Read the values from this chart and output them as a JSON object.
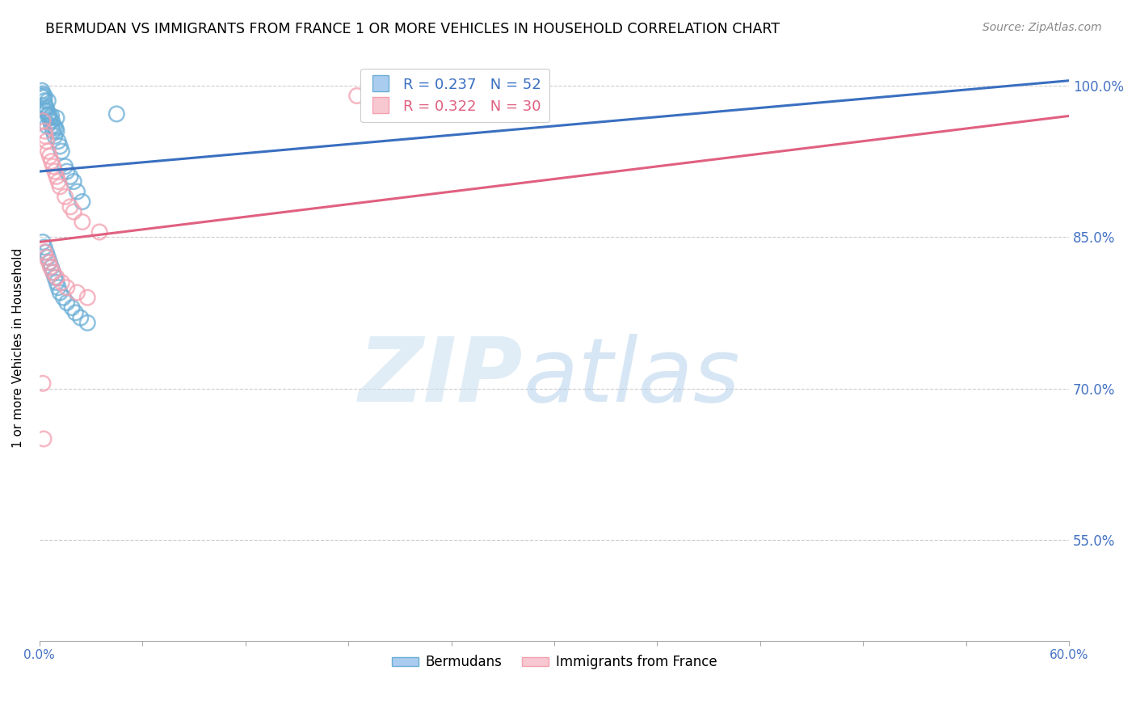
{
  "title": "BERMUDAN VS IMMIGRANTS FROM FRANCE 1 OR MORE VEHICLES IN HOUSEHOLD CORRELATION CHART",
  "source": "Source: ZipAtlas.com",
  "ylabel": "1 or more Vehicles in Household",
  "xlim": [
    0.0,
    60.0
  ],
  "ylim": [
    45.0,
    103.0
  ],
  "xticks": [
    0.0,
    6.0,
    12.0,
    18.0,
    24.0,
    30.0,
    36.0,
    42.0,
    48.0,
    54.0,
    60.0
  ],
  "yticks": [
    55.0,
    70.0,
    85.0,
    100.0
  ],
  "blue_R": 0.237,
  "blue_N": 52,
  "pink_R": 0.322,
  "pink_N": 30,
  "blue_color": "#6aaed6",
  "pink_color": "#f4a0b0",
  "blue_line_color": "#3a6fc0",
  "pink_line_color": "#e06080",
  "legend_label_blue": "Bermudans",
  "legend_label_pink": "Immigrants from France",
  "blue_points_x": [
    0.1,
    0.15,
    0.2,
    0.25,
    0.3,
    0.3,
    0.35,
    0.4,
    0.45,
    0.5,
    0.5,
    0.55,
    0.6,
    0.65,
    0.7,
    0.7,
    0.75,
    0.8,
    0.85,
    0.9,
    0.95,
    1.0,
    1.0,
    1.1,
    1.2,
    1.3,
    1.5,
    1.6,
    1.8,
    2.0,
    2.2,
    2.5,
    0.2,
    0.3,
    0.4,
    0.5,
    0.6,
    0.7,
    0.8,
    0.9,
    1.0,
    1.1,
    1.2,
    1.4,
    1.6,
    1.9,
    2.1,
    2.4,
    2.8,
    0.35,
    0.45,
    4.5
  ],
  "blue_points_y": [
    99.0,
    99.5,
    99.2,
    98.8,
    98.5,
    99.0,
    98.0,
    97.8,
    97.5,
    97.0,
    98.5,
    97.2,
    96.8,
    96.5,
    96.0,
    97.0,
    96.5,
    95.5,
    96.0,
    95.0,
    95.8,
    95.5,
    96.8,
    94.5,
    94.0,
    93.5,
    92.0,
    91.5,
    91.0,
    90.5,
    89.5,
    88.5,
    84.5,
    84.0,
    83.5,
    83.0,
    82.5,
    82.0,
    81.5,
    81.0,
    80.5,
    80.0,
    79.5,
    79.0,
    78.5,
    78.0,
    77.5,
    77.0,
    76.5,
    97.5,
    96.0,
    97.2
  ],
  "pink_points_x": [
    0.2,
    0.3,
    0.35,
    0.4,
    0.5,
    0.6,
    0.7,
    0.8,
    0.9,
    1.0,
    1.1,
    1.2,
    1.5,
    1.8,
    2.0,
    2.5,
    0.3,
    0.4,
    0.55,
    0.65,
    0.8,
    1.0,
    1.3,
    1.6,
    2.2,
    2.8,
    0.2,
    3.5,
    0.25,
    18.5
  ],
  "pink_points_y": [
    96.5,
    95.5,
    95.0,
    94.5,
    93.5,
    93.0,
    92.5,
    92.0,
    91.5,
    91.0,
    90.5,
    90.0,
    89.0,
    88.0,
    87.5,
    86.5,
    83.5,
    83.0,
    82.5,
    82.0,
    81.5,
    81.0,
    80.5,
    80.0,
    79.5,
    79.0,
    70.5,
    85.5,
    65.0,
    99.0
  ],
  "blue_trend_x": [
    0.0,
    60.0
  ],
  "blue_trend_y": [
    91.5,
    100.5
  ],
  "pink_trend_x": [
    0.0,
    60.0
  ],
  "pink_trend_y": [
    84.5,
    97.0
  ]
}
